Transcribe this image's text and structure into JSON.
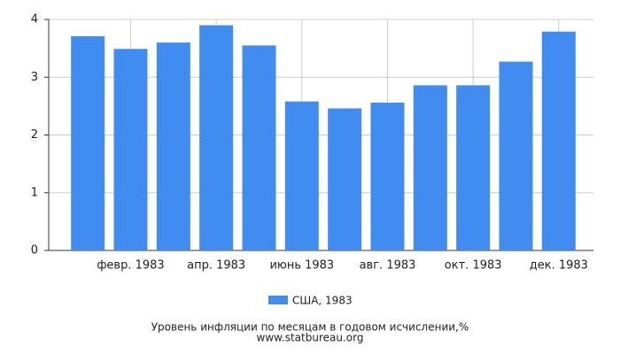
{
  "chart_data": {
    "type": "bar",
    "title": "Уровень инфляции по месяцам в годовом исчислении,%",
    "source": "www.statbureau.org",
    "categories": [
      null,
      "февр. 1983",
      null,
      "апр. 1983",
      null,
      "июнь 1983",
      null,
      "авг. 1983",
      null,
      "окт. 1983",
      null,
      "дек. 1983"
    ],
    "series": [
      {
        "name": "США, 1983",
        "color": "#418cf0",
        "values": [
          3.71,
          3.49,
          3.6,
          3.9,
          3.55,
          2.58,
          2.46,
          2.56,
          2.86,
          2.86,
          3.27,
          3.79
        ]
      }
    ],
    "ylim": [
      0,
      4
    ],
    "yticks": [
      0,
      1,
      2,
      3,
      4
    ],
    "grid": true
  }
}
